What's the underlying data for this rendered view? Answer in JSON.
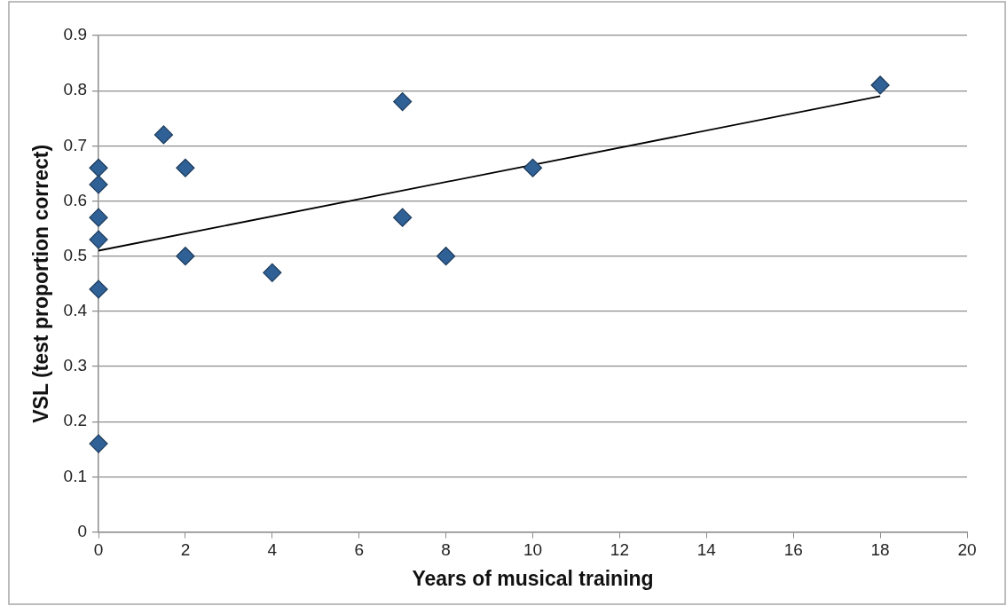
{
  "chart_data": {
    "type": "scatter",
    "xlabel": "Years of musical training",
    "ylabel": "VSL (test proportion correct)",
    "xlim": [
      0,
      20
    ],
    "xticks": [
      0,
      2,
      4,
      6,
      8,
      10,
      12,
      14,
      16,
      18,
      20
    ],
    "ylim": [
      0,
      0.9
    ],
    "yticks": [
      0,
      0.1,
      0.2,
      0.3,
      0.4,
      0.5,
      0.6,
      0.7,
      0.8,
      0.9
    ],
    "grid": "y",
    "marker": "diamond",
    "legend": false,
    "series": [
      {
        "color": "#2f6096",
        "x": [
          0,
          0,
          0,
          0,
          0,
          0,
          1.5,
          2,
          2,
          4,
          7,
          7,
          8,
          10,
          18
        ],
        "values": [
          0.66,
          0.63,
          0.57,
          0.53,
          0.44,
          0.16,
          0.72,
          0.66,
          0.5,
          0.47,
          0.78,
          0.57,
          0.5,
          0.66,
          0.81
        ]
      },
      {
        "type": "line",
        "color": "#000000",
        "marker": "none",
        "x": [
          0,
          18
        ],
        "values": [
          0.51,
          0.79
        ]
      }
    ]
  }
}
